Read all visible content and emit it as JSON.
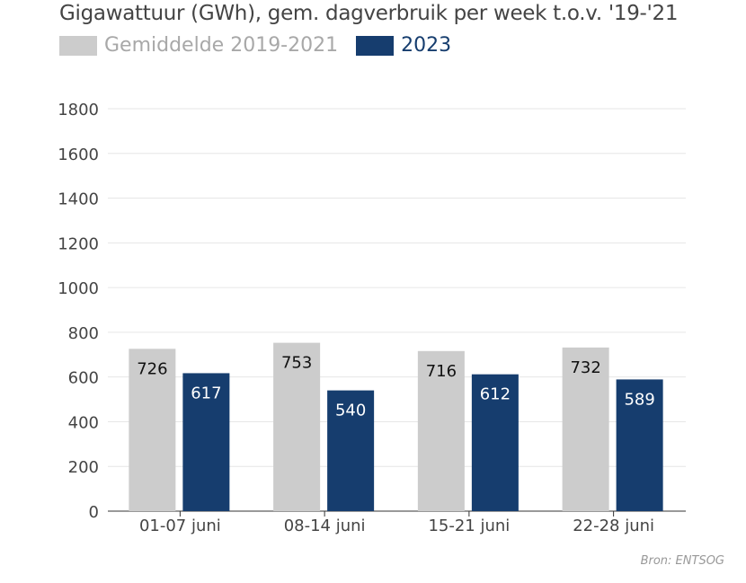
{
  "chart_data": {
    "type": "bar",
    "title": "Gigawattuur (GWh), gem. dagverbruik per week t.o.v. '19-'21",
    "categories": [
      "01-07 juni",
      "08-14 juni",
      "15-21 juni",
      "22-28 juni"
    ],
    "series": [
      {
        "name": "Gemiddelde 2019-2021",
        "values": [
          726,
          753,
          716,
          732
        ],
        "color": "#cccccc",
        "label_color": "#111111"
      },
      {
        "name": "2023",
        "values": [
          617,
          540,
          612,
          589
        ],
        "color": "#163d6e",
        "label_color": "#ffffff"
      }
    ],
    "ylim": [
      0,
      1800
    ],
    "yticks": [
      0,
      200,
      400,
      600,
      800,
      1000,
      1200,
      1400,
      1600,
      1800
    ],
    "grid": true,
    "legend_position": "top-left",
    "xlabel": "",
    "ylabel": ""
  },
  "source": "Bron: ENTSOG",
  "colors": {
    "text": "#444444",
    "grid": "#e6e6e6",
    "axis": "#333333"
  }
}
